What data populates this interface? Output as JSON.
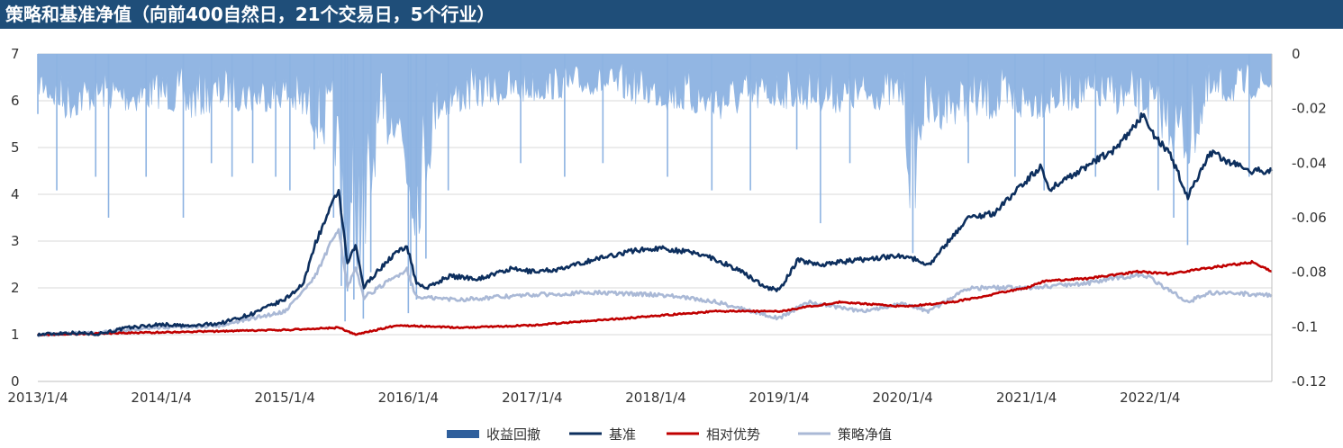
{
  "title": "策略和基准净值（向前400自然日，21个交易日，5个行业）",
  "colors": {
    "title_bg": "#1f4e79",
    "drawdown": "#8db3e2",
    "drawdown_legend": "#2f5f9c",
    "benchmark": "#0d2f5e",
    "relative": "#c00000",
    "strategy": "#aab9d6",
    "grid": "#d9d9d9"
  },
  "chart_data": {
    "type": "line",
    "x_type": "date",
    "x_ticks": [
      "2013/1/4",
      "2014/1/4",
      "2015/1/4",
      "2016/1/4",
      "2017/1/4",
      "2018/1/4",
      "2019/1/4",
      "2020/1/4",
      "2021/1/4",
      "2022/1/4"
    ],
    "x_range": [
      "2013/1/4",
      "2022/12/30"
    ],
    "y_left": {
      "range": [
        0,
        7
      ],
      "ticks": [
        "0",
        "1",
        "2",
        "3",
        "4",
        "5",
        "6",
        "7"
      ],
      "grid": true
    },
    "y_right": {
      "range": [
        -0.12,
        0
      ],
      "ticks": [
        "0",
        "-0.02",
        "-0.04",
        "-0.06",
        "-0.08",
        "-0.1",
        "-0.12"
      ],
      "reversed": true
    },
    "legend": {
      "position": "bottom",
      "items": [
        "收益回撤",
        "基准",
        "相对优势",
        "策略净值"
      ]
    },
    "series": [
      {
        "name": "基准",
        "axis": "left",
        "type": "line",
        "points": [
          [
            "2013/1/4",
            1.0
          ],
          [
            "2013/4/1",
            1.04
          ],
          [
            "2013/7/1",
            1.02
          ],
          [
            "2013/10/1",
            1.15
          ],
          [
            "2014/1/4",
            1.22
          ],
          [
            "2014/4/1",
            1.18
          ],
          [
            "2014/7/1",
            1.25
          ],
          [
            "2014/10/1",
            1.45
          ],
          [
            "2015/1/4",
            1.75
          ],
          [
            "2015/3/1",
            2.1
          ],
          [
            "2015/4/1",
            2.9
          ],
          [
            "2015/5/1",
            3.4
          ],
          [
            "2015/6/12",
            4.1
          ],
          [
            "2015/7/8",
            2.5
          ],
          [
            "2015/8/1",
            2.9
          ],
          [
            "2015/8/26",
            2.0
          ],
          [
            "2015/9/15",
            2.2
          ],
          [
            "2015/11/20",
            2.7
          ],
          [
            "2015/12/31",
            2.9
          ],
          [
            "2016/1/28",
            2.1
          ],
          [
            "2016/3/1",
            2.0
          ],
          [
            "2016/5/1",
            2.25
          ],
          [
            "2016/8/1",
            2.2
          ],
          [
            "2016/11/1",
            2.4
          ],
          [
            "2017/1/4",
            2.35
          ],
          [
            "2017/4/1",
            2.4
          ],
          [
            "2017/7/1",
            2.6
          ],
          [
            "2017/11/1",
            2.8
          ],
          [
            "2018/1/25",
            2.85
          ],
          [
            "2018/6/1",
            2.7
          ],
          [
            "2018/9/1",
            2.4
          ],
          [
            "2018/12/1",
            2.0
          ],
          [
            "2019/1/4",
            1.95
          ],
          [
            "2019/3/1",
            2.6
          ],
          [
            "2019/5/1",
            2.5
          ],
          [
            "2019/9/1",
            2.6
          ],
          [
            "2020/1/4",
            2.7
          ],
          [
            "2020/3/23",
            2.5
          ],
          [
            "2020/7/15",
            3.5
          ],
          [
            "2020/10/1",
            3.6
          ],
          [
            "2021/1/4",
            4.3
          ],
          [
            "2021/2/18",
            4.6
          ],
          [
            "2021/3/10",
            4.1
          ],
          [
            "2021/7/1",
            4.6
          ],
          [
            "2021/10/1",
            5.0
          ],
          [
            "2021/12/13",
            5.7
          ],
          [
            "2022/1/20",
            5.2
          ],
          [
            "2022/3/1",
            4.9
          ],
          [
            "2022/4/26",
            3.95
          ],
          [
            "2022/7/1",
            4.9
          ],
          [
            "2022/10/20",
            4.5
          ],
          [
            "2022/12/30",
            4.5
          ]
        ]
      },
      {
        "name": "相对优势",
        "axis": "left",
        "type": "line",
        "points": [
          [
            "2013/1/4",
            1.0
          ],
          [
            "2014/1/4",
            1.05
          ],
          [
            "2015/1/4",
            1.1
          ],
          [
            "2015/6/12",
            1.15
          ],
          [
            "2015/8/1",
            1.0
          ],
          [
            "2015/12/1",
            1.2
          ],
          [
            "2016/6/1",
            1.15
          ],
          [
            "2017/1/4",
            1.2
          ],
          [
            "2018/1/4",
            1.4
          ],
          [
            "2018/7/1",
            1.5
          ],
          [
            "2019/1/4",
            1.5
          ],
          [
            "2019/7/1",
            1.7
          ],
          [
            "2020/1/4",
            1.6
          ],
          [
            "2020/6/1",
            1.7
          ],
          [
            "2021/1/4",
            2.0
          ],
          [
            "2021/3/1",
            2.15
          ],
          [
            "2021/7/1",
            2.2
          ],
          [
            "2021/12/1",
            2.35
          ],
          [
            "2022/3/1",
            2.3
          ],
          [
            "2022/6/1",
            2.4
          ],
          [
            "2022/11/1",
            2.55
          ],
          [
            "2022/12/30",
            2.35
          ]
        ]
      },
      {
        "name": "策略净值",
        "axis": "left",
        "type": "line",
        "points": [
          [
            "2013/1/4",
            1.0
          ],
          [
            "2013/7/1",
            1.05
          ],
          [
            "2014/1/4",
            1.15
          ],
          [
            "2014/7/1",
            1.2
          ],
          [
            "2015/1/4",
            1.5
          ],
          [
            "2015/4/1",
            2.2
          ],
          [
            "2015/6/12",
            3.3
          ],
          [
            "2015/7/8",
            2.0
          ],
          [
            "2015/8/1",
            2.4
          ],
          [
            "2015/8/26",
            1.8
          ],
          [
            "2015/11/20",
            2.2
          ],
          [
            "2015/12/31",
            2.4
          ],
          [
            "2016/1/28",
            1.8
          ],
          [
            "2016/6/1",
            1.75
          ],
          [
            "2017/1/4",
            1.85
          ],
          [
            "2017/7/1",
            1.9
          ],
          [
            "2018/1/25",
            1.85
          ],
          [
            "2018/7/1",
            1.7
          ],
          [
            "2019/1/4",
            1.35
          ],
          [
            "2019/4/1",
            1.7
          ],
          [
            "2019/9/1",
            1.5
          ],
          [
            "2020/1/4",
            1.65
          ],
          [
            "2020/3/23",
            1.5
          ],
          [
            "2020/7/15",
            2.0
          ],
          [
            "2021/1/4",
            2.0
          ],
          [
            "2021/7/1",
            2.1
          ],
          [
            "2021/12/13",
            2.3
          ],
          [
            "2022/4/26",
            1.7
          ],
          [
            "2022/7/1",
            1.9
          ],
          [
            "2022/12/30",
            1.85
          ]
        ]
      },
      {
        "name": "收益回撤",
        "axis": "right",
        "type": "area",
        "envelope": [
          [
            "2013/1/4",
            -0.015
          ],
          [
            "2013/4/1",
            -0.025
          ],
          [
            "2013/7/1",
            -0.02
          ],
          [
            "2013/10/1",
            -0.022
          ],
          [
            "2014/1/4",
            -0.02
          ],
          [
            "2014/4/1",
            -0.025
          ],
          [
            "2014/7/1",
            -0.02
          ],
          [
            "2014/10/1",
            -0.022
          ],
          [
            "2015/1/4",
            -0.02
          ],
          [
            "2015/4/1",
            -0.03
          ],
          [
            "2015/6/1",
            -0.04
          ],
          [
            "2015/7/1",
            -0.09
          ],
          [
            "2015/8/1",
            -0.08
          ],
          [
            "2015/9/1",
            -0.09
          ],
          [
            "2015/10/1",
            -0.04
          ],
          [
            "2015/12/1",
            -0.03
          ],
          [
            "2016/1/4",
            -0.06
          ],
          [
            "2016/2/1",
            -0.07
          ],
          [
            "2016/4/1",
            -0.025
          ],
          [
            "2016/8/1",
            -0.02
          ],
          [
            "2017/1/4",
            -0.018
          ],
          [
            "2017/7/1",
            -0.015
          ],
          [
            "2018/1/4",
            -0.02
          ],
          [
            "2018/7/1",
            -0.025
          ],
          [
            "2019/1/4",
            -0.02
          ],
          [
            "2019/7/1",
            -0.022
          ],
          [
            "2020/1/4",
            -0.02
          ],
          [
            "2020/2/1",
            -0.07
          ],
          [
            "2020/3/1",
            -0.03
          ],
          [
            "2020/7/1",
            -0.025
          ],
          [
            "2021/1/4",
            -0.025
          ],
          [
            "2021/7/1",
            -0.02
          ],
          [
            "2022/1/4",
            -0.025
          ],
          [
            "2022/4/26",
            -0.045
          ],
          [
            "2022/7/1",
            -0.02
          ],
          [
            "2022/12/30",
            -0.015
          ]
        ],
        "spikes": [
          [
            "2013/1/4",
            -0.022
          ],
          [
            "2013/3/1",
            -0.05
          ],
          [
            "2013/6/24",
            -0.045
          ],
          [
            "2013/8/1",
            -0.06
          ],
          [
            "2013/11/20",
            -0.045
          ],
          [
            "2014/3/10",
            -0.06
          ],
          [
            "2014/6/1",
            -0.04
          ],
          [
            "2014/8/1",
            -0.045
          ],
          [
            "2014/10/1",
            -0.04
          ],
          [
            "2014/12/8",
            -0.045
          ],
          [
            "2015/1/19",
            -0.05
          ],
          [
            "2015/4/1",
            -0.035
          ],
          [
            "2015/5/28",
            -0.06
          ],
          [
            "2015/6/20",
            -0.085
          ],
          [
            "2015/7/1",
            -0.098
          ],
          [
            "2015/7/8",
            -0.087
          ],
          [
            "2015/7/27",
            -0.09
          ],
          [
            "2015/8/24",
            -0.097
          ],
          [
            "2015/9/15",
            -0.08
          ],
          [
            "2016/1/4",
            -0.095
          ],
          [
            "2016/1/11",
            -0.085
          ],
          [
            "2016/1/28",
            -0.09
          ],
          [
            "2016/2/25",
            -0.075
          ],
          [
            "2016/5/1",
            -0.05
          ],
          [
            "2016/12/1",
            -0.04
          ],
          [
            "2017/4/10",
            -0.045
          ],
          [
            "2017/8/1",
            -0.04
          ],
          [
            "2018/2/8",
            -0.045
          ],
          [
            "2018/6/19",
            -0.05
          ],
          [
            "2018/10/11",
            -0.05
          ],
          [
            "2019/2/25",
            -0.035
          ],
          [
            "2019/5/6",
            -0.062
          ],
          [
            "2019/8/1",
            -0.04
          ],
          [
            "2020/2/3",
            -0.073
          ],
          [
            "2020/7/16",
            -0.04
          ],
          [
            "2020/12/1",
            -0.045
          ],
          [
            "2021/2/25",
            -0.05
          ],
          [
            "2021/7/27",
            -0.045
          ],
          [
            "2022/1/28",
            -0.05
          ],
          [
            "2022/3/15",
            -0.06
          ],
          [
            "2022/4/25",
            -0.07
          ],
          [
            "2022/10/24",
            -0.045
          ]
        ]
      }
    ]
  }
}
